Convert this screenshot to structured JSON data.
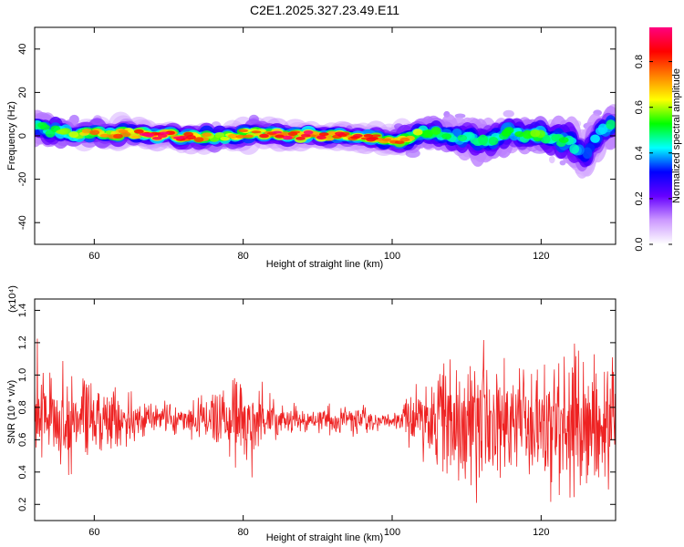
{
  "figure": {
    "title": "C2E1.2025.327.23.49.E11"
  },
  "chart_data": [
    {
      "type": "heatmap",
      "xlabel": "Height of straight line (km)",
      "ylabel": "Frequency (Hz)",
      "xlim": [
        52,
        130
      ],
      "ylim": [
        -50,
        50
      ],
      "xticks": [
        60,
        80,
        100,
        120
      ],
      "yticks": [
        -40,
        -20,
        0,
        20,
        40
      ],
      "grid": false,
      "colorbar": {
        "label": "Normalized spectral amplitude",
        "range": [
          0,
          0.95
        ],
        "ticks": [
          0.0,
          0.2,
          0.4,
          0.6,
          0.8
        ],
        "colormap": [
          "#ffffff",
          "#cc99ff",
          "#6600ff",
          "#0000ff",
          "#00ffff",
          "#00ff00",
          "#ffff00",
          "#ff8000",
          "#ff0000",
          "#ff0080"
        ]
      },
      "ridge": {
        "x": [
          52,
          56,
          60,
          64,
          68,
          72,
          76,
          80,
          84,
          88,
          92,
          96,
          100,
          104,
          108,
          112,
          116,
          120,
          124,
          126,
          128,
          130
        ],
        "center_hz": [
          4,
          1,
          1,
          1,
          0,
          0,
          -1,
          1,
          1,
          0,
          0,
          0,
          -3,
          2,
          0,
          -2,
          1,
          0,
          -3,
          -9,
          2,
          6
        ],
        "peak": [
          0.45,
          0.55,
          0.7,
          0.75,
          0.95,
          0.9,
          0.6,
          0.7,
          0.85,
          0.9,
          0.85,
          0.8,
          0.8,
          0.55,
          0.5,
          0.45,
          0.5,
          0.55,
          0.45,
          0.35,
          0.45,
          0.45
        ],
        "spread_hz": [
          5,
          4,
          3,
          3,
          2.5,
          2.5,
          3.5,
          3,
          2.5,
          2.5,
          2.5,
          2.5,
          3,
          4.5,
          5,
          6,
          5,
          5,
          6,
          7,
          6,
          6
        ]
      }
    },
    {
      "type": "line",
      "xlabel": "Height of straight line (km)",
      "ylabel": "SNR (10 * v/v)",
      "y_multiplier_label": "(x10⁴)",
      "xlim": [
        52,
        130
      ],
      "ylim": [
        0.1,
        1.47
      ],
      "xticks": [
        60,
        80,
        100,
        120
      ],
      "yticks": [
        0.2,
        0.4,
        0.6,
        0.8,
        1.0,
        1.2,
        1.4
      ],
      "grid": false,
      "color": "#ee2222",
      "envelope": {
        "x": [
          52,
          55,
          58,
          60,
          63,
          66,
          70,
          74,
          77,
          80,
          83,
          86,
          90,
          94,
          98,
          101,
          103,
          106,
          110,
          114,
          118,
          122,
          126,
          130
        ],
        "mean": [
          0.72,
          0.7,
          0.72,
          0.72,
          0.7,
          0.72,
          0.73,
          0.72,
          0.74,
          0.72,
          0.73,
          0.73,
          0.72,
          0.72,
          0.72,
          0.72,
          0.73,
          0.73,
          0.72,
          0.72,
          0.72,
          0.72,
          0.72,
          0.72
        ],
        "amp": [
          0.55,
          0.42,
          0.35,
          0.38,
          0.32,
          0.18,
          0.12,
          0.18,
          0.32,
          0.35,
          0.22,
          0.12,
          0.1,
          0.14,
          0.1,
          0.08,
          0.35,
          0.5,
          0.55,
          0.6,
          0.55,
          0.6,
          0.62,
          0.55
        ]
      },
      "samples": 1300
    }
  ]
}
